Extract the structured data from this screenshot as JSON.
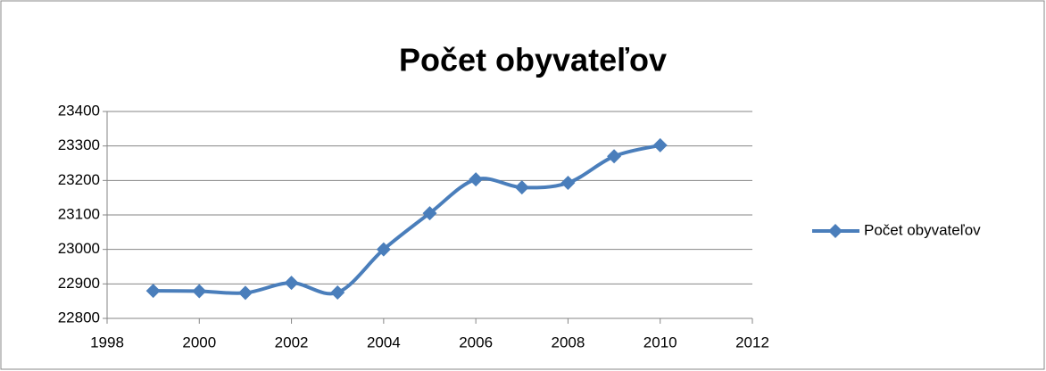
{
  "chart_data": {
    "type": "line",
    "title": "Počet obyvateľov",
    "x": [
      1999,
      2000,
      2001,
      2002,
      2003,
      2004,
      2005,
      2006,
      2007,
      2008,
      2009,
      2010
    ],
    "series": [
      {
        "name": "Počet obyvateľov",
        "color": "#4a7ebb",
        "values": [
          22880,
          22879,
          22874,
          22903,
          22875,
          23000,
          23105,
          23203,
          23180,
          23193,
          23270,
          23302
        ]
      }
    ],
    "xlim": [
      1998,
      2012
    ],
    "xticks": [
      1998,
      2000,
      2002,
      2004,
      2006,
      2008,
      2010,
      2012
    ],
    "ylim": [
      22800,
      23400
    ],
    "yticks": [
      22800,
      22900,
      23000,
      23100,
      23200,
      23300,
      23400
    ],
    "grid": true,
    "smooth": true,
    "marker": "diamond",
    "legend": "right"
  }
}
